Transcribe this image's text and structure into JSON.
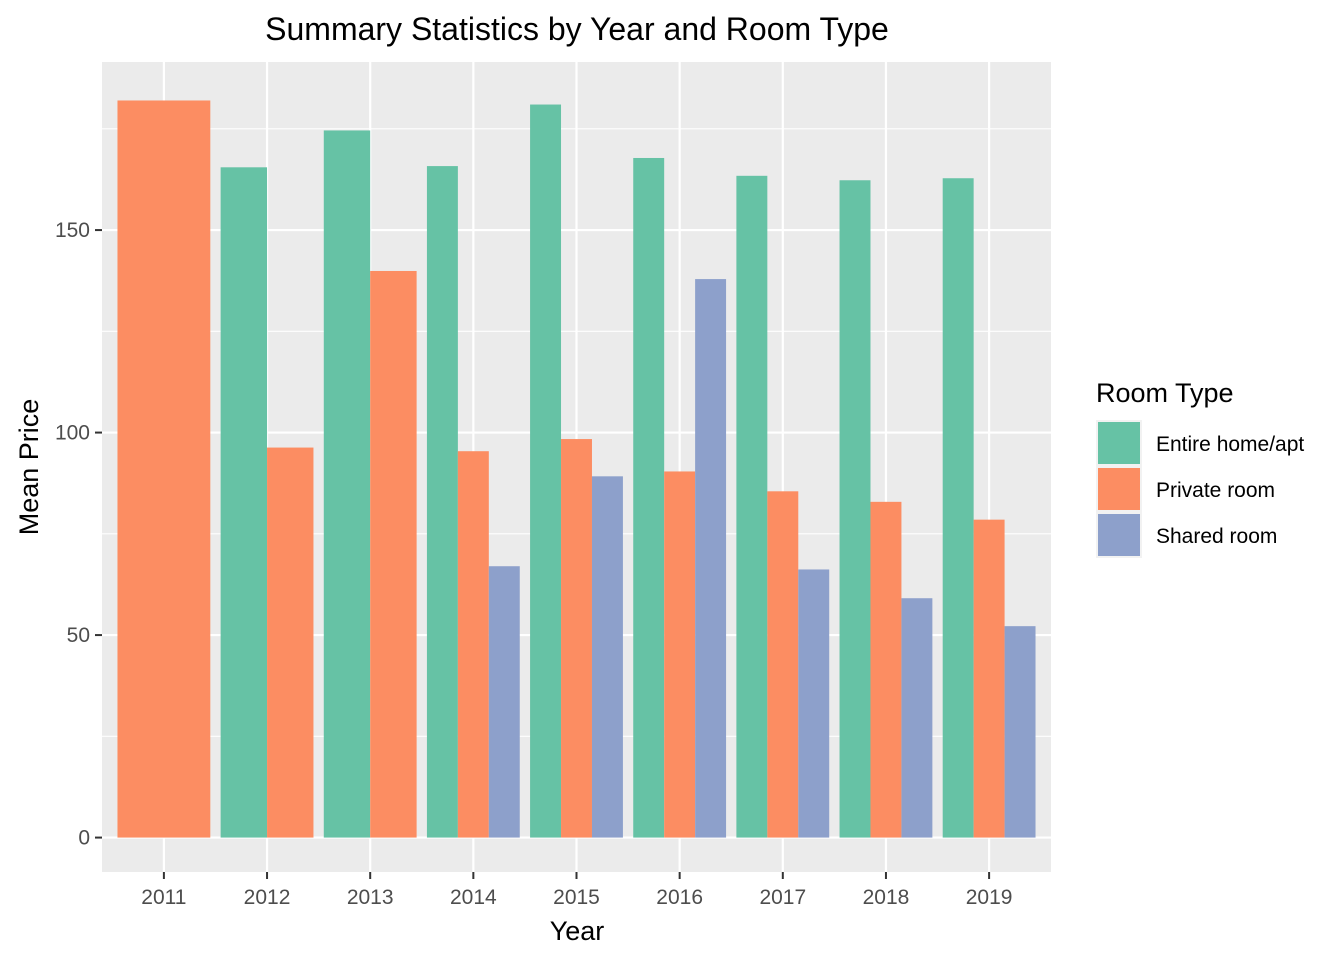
{
  "chart_data": {
    "type": "bar",
    "title": "Summary Statistics by Year and Room Type",
    "xlabel": "Year",
    "ylabel": "Mean Price",
    "categories": [
      "2011",
      "2012",
      "2013",
      "2014",
      "2015",
      "2016",
      "2017",
      "2018",
      "2019"
    ],
    "series": [
      {
        "name": "Entire home/apt",
        "color": "#66c2a5",
        "values": [
          null,
          165.5,
          174.6,
          165.8,
          181.0,
          167.8,
          163.4,
          162.3,
          162.8
        ]
      },
      {
        "name": "Private room",
        "color": "#fc8d62",
        "values": [
          182.0,
          96.3,
          139.9,
          95.4,
          98.4,
          90.4,
          85.5,
          82.9,
          78.5
        ]
      },
      {
        "name": "Shared room",
        "color": "#8da0cb",
        "values": [
          null,
          null,
          null,
          67.0,
          89.2,
          137.9,
          66.2,
          59.1,
          52.2
        ]
      }
    ],
    "y_ticks": [
      0,
      50,
      100,
      150
    ],
    "ylim": [
      -8.5,
      191.5
    ],
    "grid": true,
    "legend": {
      "title": "Room Type",
      "position": "right"
    },
    "panel_background": "#ebebeb"
  }
}
